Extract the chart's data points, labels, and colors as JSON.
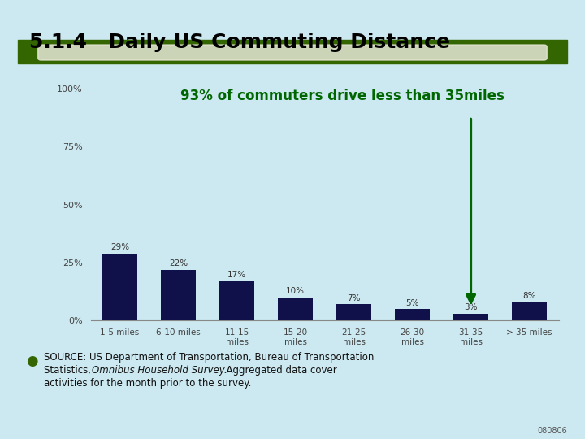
{
  "title": "5.1.4   Daily US Commuting Distance",
  "annotation": "93% of commuters drive less than 35miles",
  "categories": [
    "1-5 miles",
    "6-10 miles",
    "11-15\nmiles",
    "15-20\nmiles",
    "21-25\nmiles",
    "26-30\nmiles",
    "31-35\nmiles",
    "> 35 miles"
  ],
  "values": [
    29,
    22,
    17,
    10,
    7,
    5,
    3,
    8
  ],
  "labels": [
    "29%",
    "22%",
    "17%",
    "10%",
    "7%",
    "5%",
    "3%",
    "8%"
  ],
  "bar_color": "#10104a",
  "arrow_color": "#006600",
  "annotation_color": "#006600",
  "background_color": "#cce8f0",
  "title_color": "#000000",
  "yticks": [
    0,
    25,
    50,
    75,
    100
  ],
  "ylim": [
    0,
    108
  ],
  "header_green": "#336600",
  "slide_number": "080806"
}
